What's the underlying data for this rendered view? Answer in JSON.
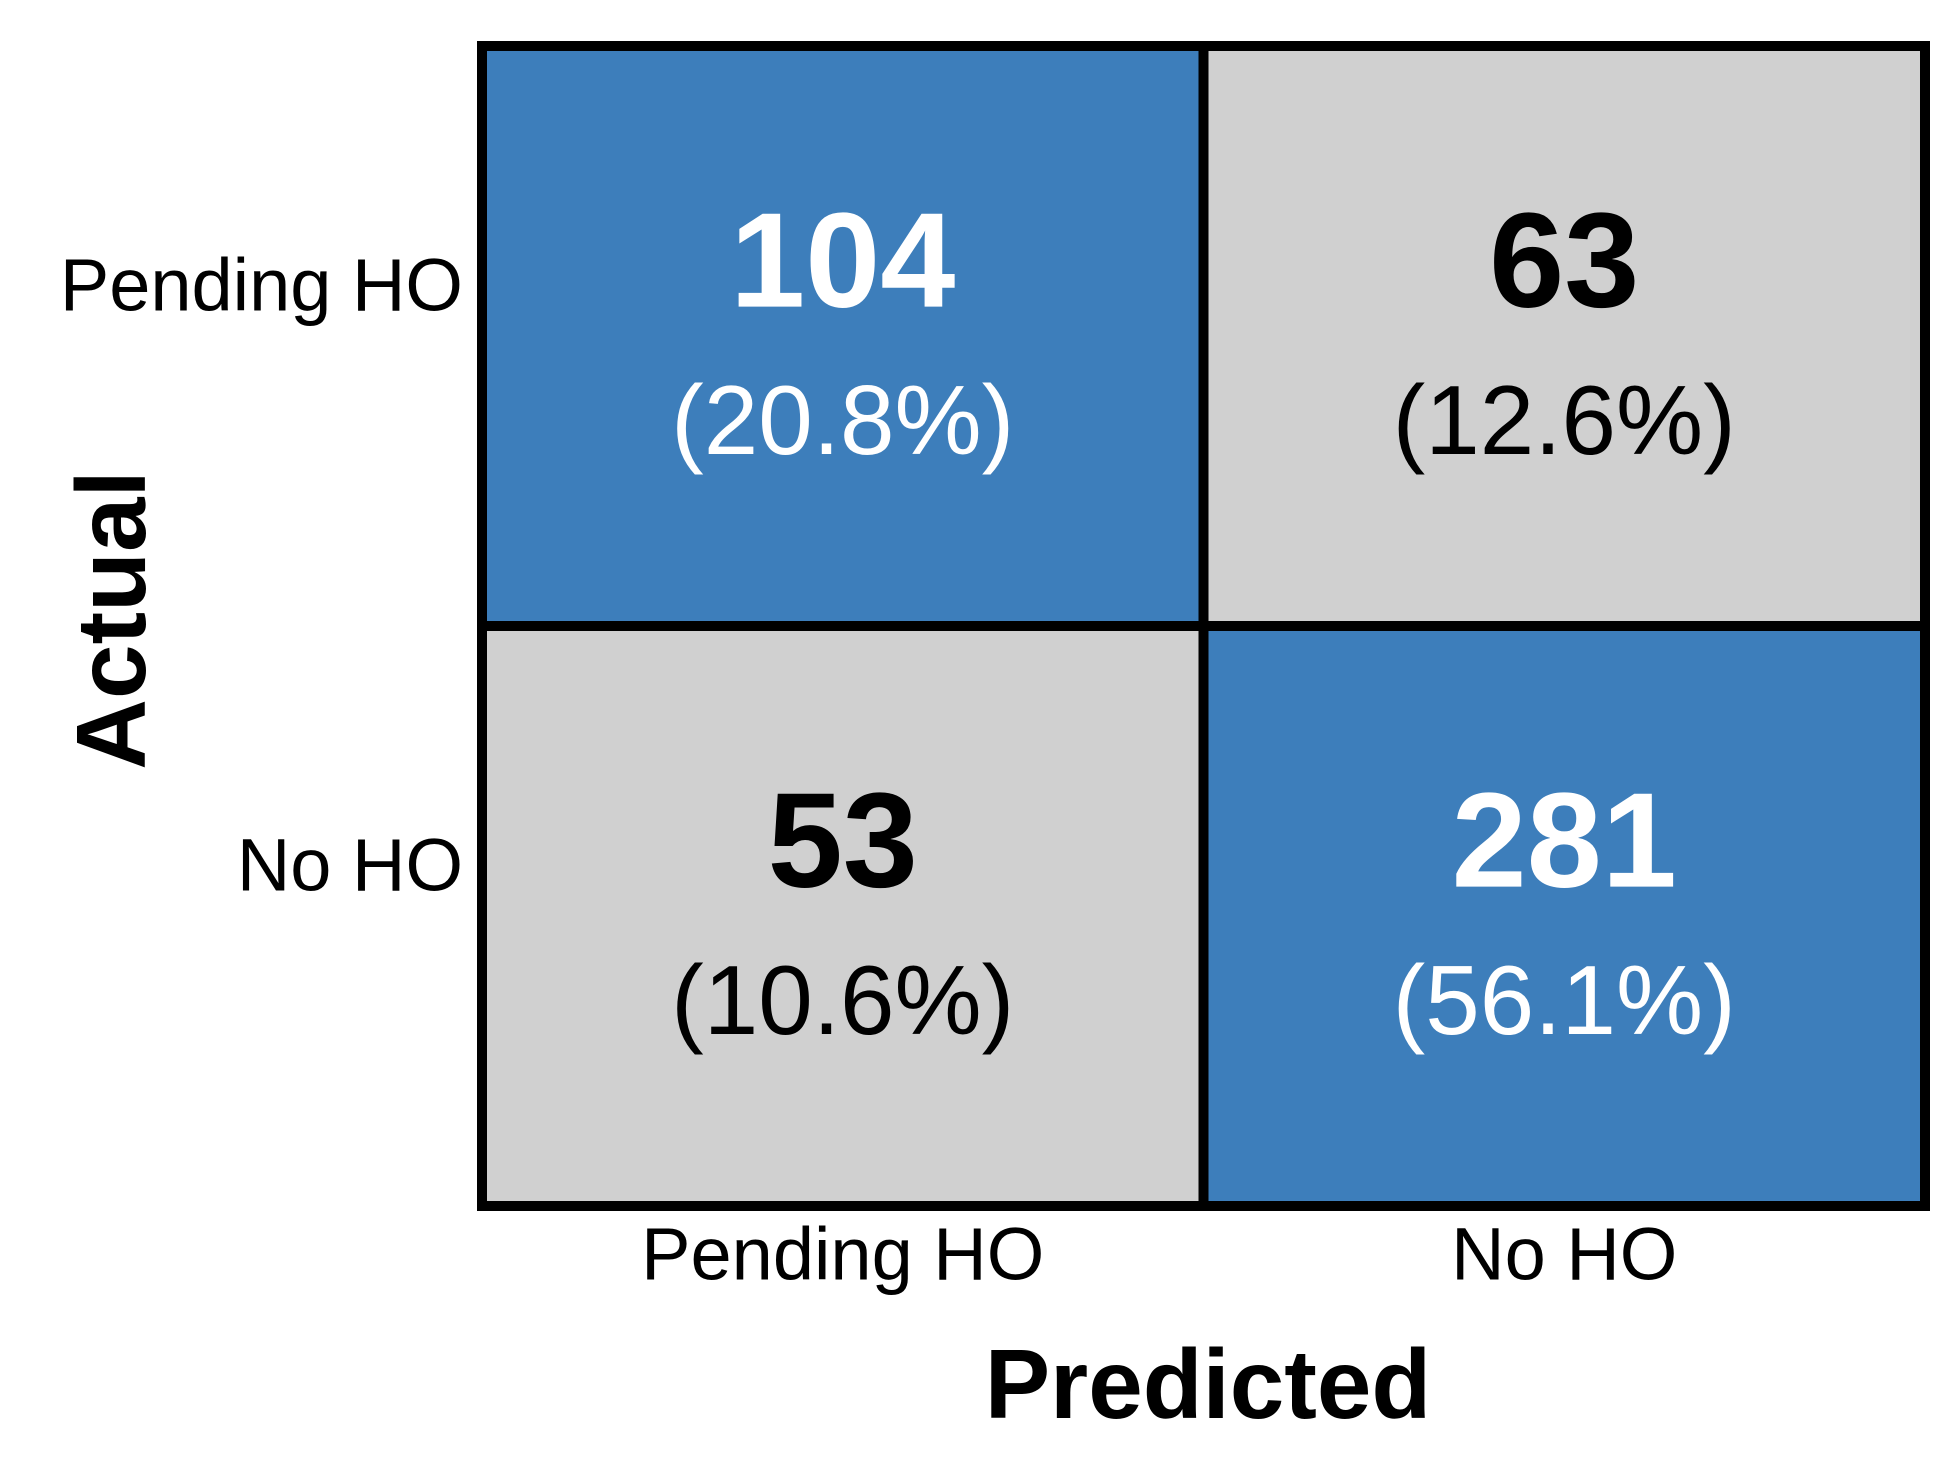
{
  "chart_data": {
    "type": "heatmap",
    "x_label": "Predicted",
    "y_label": "Actual",
    "x_categories": [
      "Pending HO",
      "No HO"
    ],
    "y_categories": [
      "Pending HO",
      "No HO"
    ],
    "values": [
      [
        104,
        63
      ],
      [
        53,
        281
      ]
    ],
    "percent_values": [
      [
        20.8,
        12.6
      ],
      [
        10.6,
        56.1
      ]
    ],
    "percent_labels": [
      [
        "(20.8%)",
        "(12.6%)"
      ],
      [
        "(10.6%)",
        "(56.1%)"
      ]
    ],
    "cell_colors": [
      [
        "#3d7ebb",
        "#d0d0d0"
      ],
      [
        "#d0d0d0",
        "#3d7ebb"
      ]
    ],
    "text_colors": [
      [
        "#ffffff",
        "#000000"
      ],
      [
        "#000000",
        "#ffffff"
      ]
    ]
  }
}
